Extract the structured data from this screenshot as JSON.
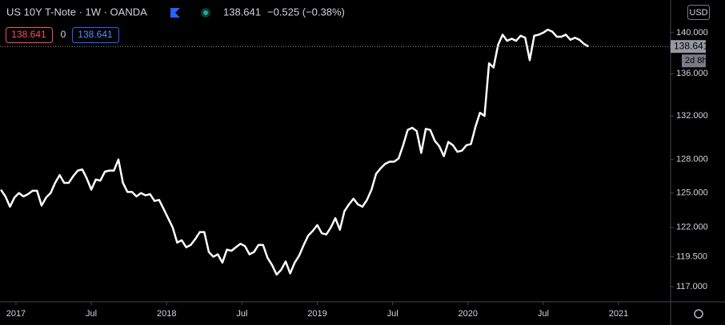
{
  "chart_data": {
    "type": "line",
    "title": "US 10Y T-Note · 1W · OANDA",
    "last_price": 138.641,
    "change": "−0.525 (−0.38%)",
    "sell_price": 138.641,
    "spread": 0,
    "buy_price": 138.641,
    "countdown": "2d 8h",
    "currency": "USD",
    "log_scale": true,
    "x": [
      2016.9,
      2016.93,
      2016.96,
      2016.99,
      2017.02,
      2017.05,
      2017.08,
      2017.11,
      2017.14,
      2017.17,
      2017.2,
      2017.23,
      2017.26,
      2017.29,
      2017.32,
      2017.35,
      2017.38,
      2017.41,
      2017.44,
      2017.47,
      2017.5,
      2017.53,
      2017.56,
      2017.59,
      2017.62,
      2017.65,
      2017.68,
      2017.71,
      2017.74,
      2017.77,
      2017.8,
      2017.83,
      2017.86,
      2017.89,
      2017.92,
      2017.95,
      2017.98,
      2018.01,
      2018.04,
      2018.07,
      2018.1,
      2018.13,
      2018.16,
      2018.19,
      2018.22,
      2018.25,
      2018.28,
      2018.31,
      2018.34,
      2018.37,
      2018.4,
      2018.43,
      2018.46,
      2018.49,
      2018.52,
      2018.55,
      2018.58,
      2018.61,
      2018.64,
      2018.67,
      2018.7,
      2018.73,
      2018.76,
      2018.79,
      2018.82,
      2018.85,
      2018.88,
      2018.91,
      2018.94,
      2018.97,
      2019.0,
      2019.03,
      2019.06,
      2019.09,
      2019.12,
      2019.15,
      2019.18,
      2019.21,
      2019.24,
      2019.27,
      2019.3,
      2019.33,
      2019.36,
      2019.39,
      2019.42,
      2019.45,
      2019.48,
      2019.51,
      2019.54,
      2019.57,
      2019.6,
      2019.63,
      2019.66,
      2019.69,
      2019.72,
      2019.75,
      2019.78,
      2019.81,
      2019.84,
      2019.87,
      2019.9,
      2019.93,
      2019.96,
      2019.99,
      2020.02,
      2020.05,
      2020.08,
      2020.11,
      2020.14,
      2020.17,
      2020.2,
      2020.23,
      2020.26,
      2020.29,
      2020.32,
      2020.35,
      2020.38,
      2020.41,
      2020.44,
      2020.47,
      2020.5,
      2020.53,
      2020.56,
      2020.59,
      2020.62,
      2020.65,
      2020.68,
      2020.71,
      2020.74,
      2020.77,
      2020.8
    ],
    "series": [
      {
        "name": "US 10Y T-Note",
        "color": "#ffffff",
        "values": [
          125.3,
          124.7,
          123.8,
          124.6,
          125.0,
          124.7,
          124.9,
          125.2,
          125.2,
          123.9,
          124.6,
          125.0,
          125.9,
          126.6,
          125.9,
          125.9,
          126.5,
          127.0,
          127.1,
          126.3,
          125.3,
          126.2,
          126.1,
          126.9,
          127.0,
          127.0,
          128.0,
          125.9,
          125.1,
          125.1,
          124.7,
          125.0,
          124.8,
          124.9,
          124.3,
          124.4,
          123.6,
          122.8,
          122.0,
          120.7,
          120.9,
          120.3,
          120.5,
          121.0,
          121.6,
          121.6,
          119.9,
          119.5,
          119.7,
          119.0,
          120.1,
          120.0,
          120.3,
          120.6,
          120.4,
          119.7,
          119.9,
          120.5,
          120.5,
          119.4,
          118.8,
          118.0,
          118.4,
          119.1,
          118.1,
          119.0,
          119.6,
          120.5,
          121.3,
          121.7,
          122.2,
          121.5,
          121.4,
          122.0,
          122.8,
          121.8,
          123.4,
          124.0,
          124.5,
          124.0,
          123.8,
          124.4,
          125.3,
          126.7,
          127.2,
          127.6,
          127.8,
          127.8,
          128.1,
          129.3,
          130.7,
          130.9,
          130.6,
          128.6,
          130.8,
          130.7,
          129.7,
          129.2,
          128.3,
          129.6,
          129.3,
          128.7,
          128.8,
          129.3,
          129.4,
          131.0,
          132.3,
          132.0,
          137.0,
          136.6,
          138.8,
          139.8,
          139.2,
          139.4,
          139.2,
          139.7,
          139.5,
          137.3,
          139.7,
          139.8,
          140.0,
          140.3,
          140.1,
          139.6,
          139.6,
          139.8,
          139.3,
          139.5,
          139.3,
          138.9,
          138.641
        ]
      }
    ],
    "xlim": [
      2016.894,
      2021.345
    ],
    "xticks": [
      {
        "value": 2017,
        "label": "2017"
      },
      {
        "value": 2017.5,
        "label": "Jul"
      },
      {
        "value": 2018,
        "label": "2018"
      },
      {
        "value": 2018.5,
        "label": "Jul"
      },
      {
        "value": 2019,
        "label": "2019"
      },
      {
        "value": 2019.5,
        "label": "Jul"
      },
      {
        "value": 2020,
        "label": "2020"
      },
      {
        "value": 2020.5,
        "label": "Jul"
      },
      {
        "value": 2021,
        "label": "2021"
      }
    ],
    "ylim": [
      115.75,
      143.27
    ],
    "yticks": [
      {
        "value": 117,
        "label": "117.000"
      },
      {
        "value": 119.5,
        "label": "119.500"
      },
      {
        "value": 122,
        "label": "122.000"
      },
      {
        "value": 125,
        "label": "125.000"
      },
      {
        "value": 128,
        "label": "128.000"
      },
      {
        "value": 132,
        "label": "132.000"
      },
      {
        "value": 136,
        "label": "136.000"
      },
      {
        "value": 140,
        "label": "140.000"
      }
    ],
    "grid": false
  }
}
